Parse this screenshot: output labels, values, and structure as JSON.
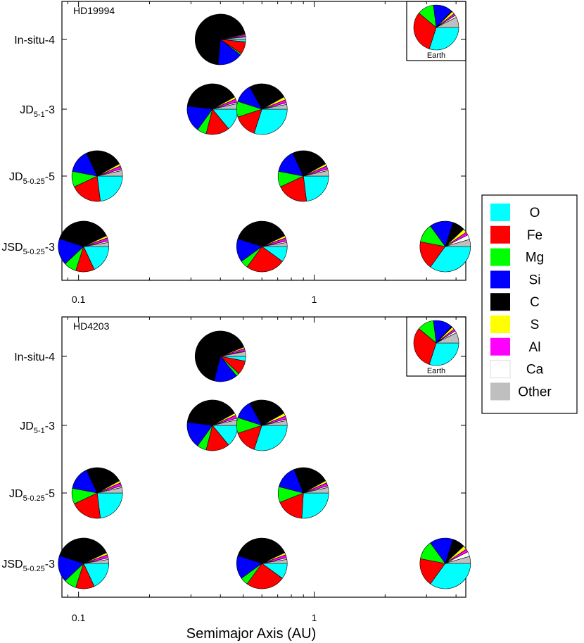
{
  "colors": {
    "O": "#00ffff",
    "Fe": "#ff0000",
    "Mg": "#00ff00",
    "Si": "#0000ff",
    "C": "#000000",
    "S": "#ffff00",
    "Al": "#ff00ff",
    "Ca": "#ffffff",
    "Other": "#bfbfbf"
  },
  "chart_data": {
    "type": "pie",
    "xlabel": "Semimajor Axis (AU)",
    "xscale": "log",
    "xlim": [
      0.085,
      4.4
    ],
    "xticks": [
      {
        "value": 0.1,
        "label": "0.1"
      },
      {
        "value": 1,
        "label": "1"
      }
    ],
    "grid": false,
    "legend": {
      "placement": "right",
      "entries": [
        "O",
        "Fe",
        "Mg",
        "Si",
        "C",
        "S",
        "Al",
        "Ca",
        "Other"
      ]
    },
    "elements": [
      "O",
      "Fe",
      "Mg",
      "Si",
      "C",
      "S",
      "Al",
      "Ca",
      "Other"
    ],
    "panels": [
      {
        "system": "HD19994",
        "rows": [
          {
            "main": "In-situ-4",
            "sub": "",
            "suffix": "",
            "planets": [
              {
                "a": 0.4,
                "comp": [
                  1.5,
                  8,
                  1,
                  16,
                  70,
                  0.5,
                  1,
                  0.5,
                  1.5
                ]
              }
            ]
          },
          {
            "main": "JD",
            "sub": "5-1",
            "suffix": "-3",
            "planets": [
              {
                "a": 0.37,
                "comp": [
                  14,
                  15,
                  6,
                  17,
                  40,
                  1.5,
                  2,
                  1,
                  3.5
                ]
              },
              {
                "a": 0.6,
                "comp": [
                  30,
                  15,
                  10,
                  12,
                  25,
                  2,
                  2,
                  1,
                  3
                ]
              }
            ]
          },
          {
            "main": "JD",
            "sub": "5-0.25",
            "suffix": "-5",
            "planets": [
              {
                "a": 0.12,
                "comp": [
                  23,
                  20,
                  10,
                  15,
                  24,
                  1.5,
                  2,
                  1,
                  3.5
                ]
              },
              {
                "a": 0.9,
                "comp": [
                  23,
                  20,
                  10,
                  15,
                  24,
                  1.5,
                  2,
                  1,
                  3.5
                ]
              }
            ]
          },
          {
            "main": "JSD",
            "sub": "5-0.25",
            "suffix": "-3",
            "planets": [
              {
                "a": 0.105,
                "comp": [
                  18,
                  12,
                  8,
                  17,
                  38,
                  1.5,
                  2,
                  1,
                  2.5
                ]
              },
              {
                "a": 0.6,
                "comp": [
                  10,
                  25,
                  5,
                  15,
                  38,
                  1.5,
                  2,
                  1,
                  2.5
                ]
              },
              {
                "a": 3.6,
                "comp": [
                  35,
                  18,
                  12,
                  15,
                  8,
                  2.5,
                  2,
                  3,
                  4.5
                ]
              }
            ]
          }
        ],
        "inset": {
          "label": "Earth",
          "comp": [
            30,
            31,
            12,
            14,
            0.5,
            2,
            1.5,
            1.5,
            7.5
          ]
        }
      },
      {
        "system": "HD4203",
        "rows": [
          {
            "main": "In-situ-4",
            "sub": "",
            "suffix": "",
            "planets": [
              {
                "a": 0.4,
                "comp": [
                  3,
                  9,
                  2,
                  15,
                  65,
                  1,
                  1.5,
                  0.5,
                  3
                ]
              }
            ]
          },
          {
            "main": "JD",
            "sub": "5-1",
            "suffix": "-3",
            "planets": [
              {
                "a": 0.37,
                "comp": [
                  14,
                  15,
                  6,
                  17,
                  40,
                  1.5,
                  2,
                  1,
                  3.5
                ]
              },
              {
                "a": 0.6,
                "comp": [
                  30,
                  15,
                  10,
                  12,
                  25,
                  2,
                  2,
                  1,
                  3
                ]
              }
            ]
          },
          {
            "main": "JD",
            "sub": "5-0.25",
            "suffix": "-5",
            "planets": [
              {
                "a": 0.12,
                "comp": [
                  23,
                  20,
                  10,
                  15,
                  24,
                  1.5,
                  2,
                  1,
                  3.5
                ]
              },
              {
                "a": 0.9,
                "comp": [
                  26,
                  18,
                  10,
                  15,
                  23,
                  1.5,
                  2,
                  1,
                  3.5
                ]
              }
            ]
          },
          {
            "main": "JSD",
            "sub": "5-0.25",
            "suffix": "-3",
            "planets": [
              {
                "a": 0.105,
                "comp": [
                  18,
                  12,
                  8,
                  17,
                  38,
                  1.5,
                  2,
                  1,
                  2.5
                ]
              },
              {
                "a": 0.6,
                "comp": [
                  10,
                  25,
                  5,
                  15,
                  38,
                  1.5,
                  2,
                  1,
                  2.5
                ]
              },
              {
                "a": 3.6,
                "comp": [
                  35,
                  18,
                  12,
                  15,
                  8,
                  2.5,
                  2,
                  3,
                  4.5
                ]
              }
            ]
          }
        ],
        "inset": {
          "label": "Earth",
          "comp": [
            30,
            31,
            12,
            14,
            0.5,
            2,
            1.5,
            1.5,
            7.5
          ]
        }
      }
    ]
  }
}
